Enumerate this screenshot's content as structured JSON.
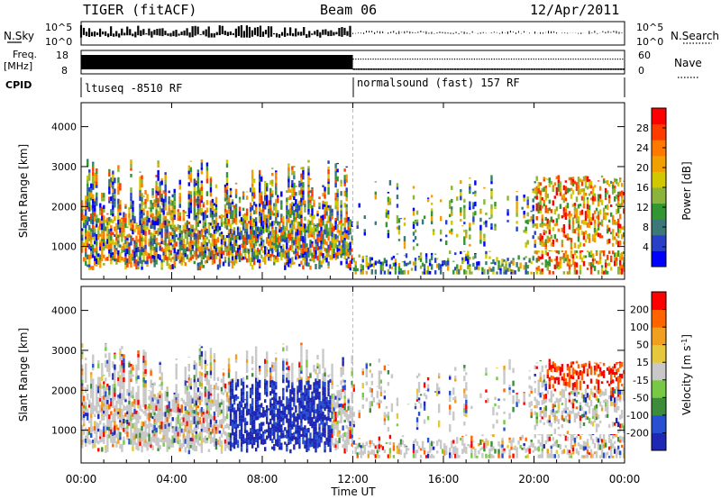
{
  "header": {
    "radar": "TIGER (fitACF)",
    "beam": "Beam 06",
    "date": "12/Apr/2011"
  },
  "left_labels": {
    "nsky": "N.Sky",
    "freq": "Freq.",
    "freq_unit": "[MHz]",
    "cpid": "CPID"
  },
  "right_labels": {
    "nsearch": "N.Search",
    "nave": "Nave"
  },
  "noise_panel": {
    "left_ticks": [
      "10^5",
      "10^0"
    ],
    "right_ticks": [
      "10^5",
      "10^0"
    ]
  },
  "freq_panel": {
    "left_ticks": [
      "18",
      "8"
    ],
    "right_ticks": [
      "60",
      "0"
    ]
  },
  "cpid_panel": {
    "segments": [
      {
        "label": "ltuseq -8510 RF",
        "start_hour": 0,
        "end_hour": 12
      },
      {
        "label": "normalsound (fast) 157 RF",
        "start_hour": 12,
        "end_hour": 24
      }
    ]
  },
  "chart_data": [
    {
      "type": "heatmap",
      "name": "power",
      "ylabel": "Slant Range [km]",
      "ylim": [
        180,
        4600
      ],
      "y_ticks": [
        "1000",
        "2000",
        "3000",
        "4000"
      ],
      "x_ticks": [
        "00:00",
        "04:00",
        "08:00",
        "12:00",
        "16:00",
        "20:00",
        "00:00"
      ],
      "xlim_hours": [
        0,
        24
      ],
      "colorbar": {
        "label": "Power [dB]",
        "ticks": [
          "4",
          "8",
          "12",
          "16",
          "20",
          "24",
          "28"
        ],
        "colors": [
          "#0000ff",
          "#2840c8",
          "#3c7878",
          "#329632",
          "#8cb43c",
          "#d2c800",
          "#f0a000",
          "#ff7800",
          "#ff3c00",
          "#ff0000"
        ]
      }
    },
    {
      "type": "heatmap",
      "name": "velocity",
      "ylabel": "Slant Range [km]",
      "ylim": [
        180,
        4600
      ],
      "y_ticks": [
        "1000",
        "2000",
        "3000",
        "4000"
      ],
      "x_ticks": [
        "00:00",
        "04:00",
        "08:00",
        "12:00",
        "16:00",
        "20:00",
        "00:00"
      ],
      "xlim_hours": [
        0,
        24
      ],
      "colorbar": {
        "label": "Velocity [m s",
        "label_sup": "-1",
        "label_end": "]",
        "ticks": [
          "200",
          "100",
          "50",
          "15",
          "-15",
          "-50",
          "-100",
          "-200"
        ],
        "colors": [
          "#1e28b4",
          "#2850d2",
          "#3c8c3c",
          "#78c846",
          "#c8c8c8",
          "#e6c83c",
          "#f0a01e",
          "#ff6400",
          "#ff0000"
        ]
      }
    }
  ],
  "xaxis": {
    "label": "Time UT"
  }
}
